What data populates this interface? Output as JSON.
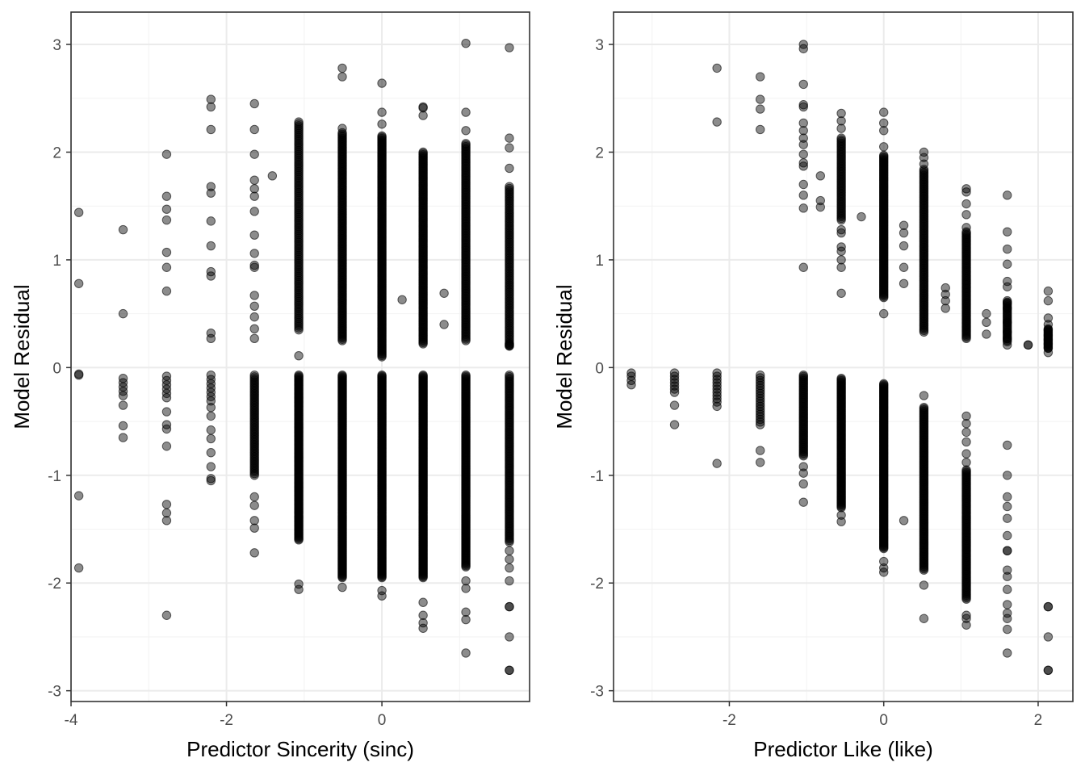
{
  "chart_data": [
    {
      "type": "scatter",
      "xlabel": "Predictor Sincerity (sinc)",
      "ylabel": "Model Residual",
      "xlim": [
        -4.0,
        1.9
      ],
      "ylim": [
        -3.1,
        3.3
      ],
      "x_ticks": [
        -4,
        -2,
        0
      ],
      "y_ticks": [
        -3,
        -2,
        -1,
        0,
        1,
        2,
        3
      ],
      "grid": true,
      "point_color": "#000000",
      "point_opacity": 0.45,
      "columns": [
        {
          "x": -3.9,
          "y": [
            1.44,
            0.78,
            -0.06,
            -0.07,
            -1.19,
            -1.86
          ]
        },
        {
          "x": -3.33,
          "y": [
            1.28,
            0.5,
            -0.1,
            -0.14,
            -0.18,
            -0.22,
            -0.26,
            -0.35,
            -0.54,
            -0.65
          ]
        },
        {
          "x": -2.77,
          "y": [
            1.98,
            1.59,
            1.47,
            1.37,
            1.07,
            0.93,
            0.71,
            -0.08,
            -0.12,
            -0.16,
            -0.2,
            -0.24,
            -0.28,
            -0.41,
            -0.53,
            -0.57,
            -0.73,
            -1.27,
            -1.35,
            -1.42,
            -2.3
          ]
        },
        {
          "x": -2.2,
          "y": [
            2.49,
            2.42,
            2.21,
            1.68,
            1.62,
            1.36,
            1.13,
            0.89,
            0.85,
            0.32,
            0.27,
            -0.07,
            -0.11,
            -0.15,
            -0.19,
            -0.23,
            -0.27,
            -0.31,
            -0.37,
            -0.45,
            -0.58,
            -0.66,
            -0.79,
            -0.92,
            -1.03,
            -1.05
          ]
        },
        {
          "x": -1.64,
          "y": [
            2.45,
            2.21,
            1.98,
            1.74,
            1.66,
            1.59,
            1.45,
            1.23,
            1.06,
            0.95,
            0.93,
            0.67,
            0.57,
            0.47,
            0.36,
            0.27
          ]
        },
        {
          "x": -1.64,
          "range": [
            -1.0,
            -0.07
          ],
          "n": 60
        },
        {
          "x": -1.64,
          "y": [
            -1.2,
            -1.28,
            -1.42,
            -1.49,
            -1.72
          ]
        },
        {
          "x": -1.41,
          "y": [
            1.78
          ]
        },
        {
          "x": -1.07,
          "range": [
            0.35,
            2.28
          ],
          "n": 110
        },
        {
          "x": -1.07,
          "y": [
            0.11
          ]
        },
        {
          "x": -1.07,
          "range": [
            -1.6,
            -0.07
          ],
          "n": 150
        },
        {
          "x": -1.07,
          "y": [
            -2.01,
            -2.06
          ]
        },
        {
          "x": -0.51,
          "y": [
            2.78,
            2.7,
            2.22
          ]
        },
        {
          "x": -0.51,
          "range": [
            0.25,
            2.18
          ],
          "n": 150
        },
        {
          "x": -0.51,
          "range": [
            -1.95,
            -0.07
          ],
          "n": 200
        },
        {
          "x": -0.51,
          "y": [
            -2.04
          ]
        },
        {
          "x": 0.0,
          "y": [
            2.64,
            2.37,
            2.26
          ]
        },
        {
          "x": 0.0,
          "range": [
            0.1,
            2.15
          ],
          "n": 180
        },
        {
          "x": 0.0,
          "range": [
            -1.95,
            -0.07
          ],
          "n": 200
        },
        {
          "x": 0.0,
          "y": [
            -2.07,
            -2.12
          ]
        },
        {
          "x": 0.26,
          "y": [
            0.63
          ]
        },
        {
          "x": 0.53,
          "y": [
            2.42,
            2.41,
            2.34
          ]
        },
        {
          "x": 0.53,
          "range": [
            0.22,
            2.0
          ],
          "n": 150
        },
        {
          "x": 0.53,
          "range": [
            -1.95,
            -0.07
          ],
          "n": 200
        },
        {
          "x": 0.53,
          "y": [
            -2.18,
            -2.3,
            -2.37,
            -2.42
          ]
        },
        {
          "x": 0.8,
          "y": [
            0.69,
            0.4
          ]
        },
        {
          "x": 1.08,
          "y": [
            3.01,
            2.37,
            2.2
          ]
        },
        {
          "x": 1.08,
          "range": [
            0.25,
            2.08
          ],
          "n": 130
        },
        {
          "x": 1.08,
          "range": [
            -1.85,
            -0.07
          ],
          "n": 160
        },
        {
          "x": 1.08,
          "y": [
            -1.98,
            -2.05,
            -2.27,
            -2.34,
            -2.65
          ]
        },
        {
          "x": 1.64,
          "y": [
            2.97,
            2.13,
            2.04,
            1.85
          ]
        },
        {
          "x": 1.64,
          "range": [
            0.2,
            1.68
          ],
          "n": 90
        },
        {
          "x": 1.64,
          "y": [
            0.2,
            0.21,
            0.22
          ]
        },
        {
          "x": 1.64,
          "range": [
            -1.62,
            -0.07
          ],
          "n": 110
        },
        {
          "x": 1.64,
          "y": [
            -1.7,
            -1.78,
            -1.86,
            -1.98,
            -2.22,
            -2.22,
            -2.5,
            -2.81,
            -2.81
          ]
        }
      ]
    },
    {
      "type": "scatter",
      "xlabel": "Predictor Like (like)",
      "ylabel": "Model Residual",
      "xlim": [
        -3.5,
        2.45
      ],
      "ylim": [
        -3.1,
        3.3
      ],
      "x_ticks": [
        -2,
        0,
        2
      ],
      "y_ticks": [
        -3,
        -2,
        -1,
        0,
        1,
        2,
        3
      ],
      "grid": true,
      "point_color": "#000000",
      "point_opacity": 0.45,
      "columns": [
        {
          "x": -3.27,
          "y": [
            -0.05,
            -0.08,
            -0.12,
            -0.16
          ]
        },
        {
          "x": -2.71,
          "y": [
            -0.05,
            -0.08,
            -0.11,
            -0.14,
            -0.17,
            -0.2,
            -0.23,
            -0.35,
            -0.53
          ]
        },
        {
          "x": -2.16,
          "y": [
            2.78,
            2.28,
            -0.05,
            -0.08,
            -0.11,
            -0.14,
            -0.17,
            -0.2,
            -0.23,
            -0.26,
            -0.29,
            -0.32,
            -0.36,
            -0.89
          ]
        },
        {
          "x": -1.6,
          "y": [
            2.7,
            2.49,
            2.4,
            2.21
          ]
        },
        {
          "x": -1.6,
          "range": [
            -0.53,
            -0.07
          ],
          "n": 20
        },
        {
          "x": -1.6,
          "y": [
            -0.77,
            -0.88
          ]
        },
        {
          "x": -1.04,
          "y": [
            3.0,
            2.96,
            2.63,
            2.44,
            2.42,
            2.27,
            2.2,
            2.13,
            2.07,
            1.98,
            1.9,
            1.87,
            1.7,
            1.6,
            1.48,
            0.93
          ]
        },
        {
          "x": -1.04,
          "range": [
            -0.82,
            -0.07
          ],
          "n": 60
        },
        {
          "x": -1.04,
          "y": [
            -0.92,
            -0.98,
            -1.08,
            -1.25
          ]
        },
        {
          "x": -0.82,
          "y": [
            1.78,
            1.55,
            1.49
          ]
        },
        {
          "x": -0.29,
          "y": [
            1.4
          ]
        },
        {
          "x": -0.55,
          "y": [
            2.36,
            2.29,
            2.22
          ]
        },
        {
          "x": -0.55,
          "range": [
            1.37,
            2.13
          ],
          "n": 50
        },
        {
          "x": -0.55,
          "y": [
            1.28,
            1.25,
            1.12,
            1.08,
            1.0,
            0.93,
            0.69
          ]
        },
        {
          "x": -0.55,
          "range": [
            -1.3,
            -0.1
          ],
          "n": 110
        },
        {
          "x": -0.55,
          "y": [
            -1.37,
            -1.43
          ]
        },
        {
          "x": 0.0,
          "y": [
            2.37,
            2.27,
            2.2,
            2.05
          ]
        },
        {
          "x": 0.0,
          "range": [
            0.65,
            1.97
          ],
          "n": 120
        },
        {
          "x": 0.0,
          "y": [
            0.5
          ]
        },
        {
          "x": 0.0,
          "range": [
            -1.68,
            -0.15
          ],
          "n": 160
        },
        {
          "x": 0.0,
          "y": [
            -1.8,
            -1.86,
            -1.9
          ]
        },
        {
          "x": 0.26,
          "y": [
            1.32,
            1.25,
            1.13,
            0.93,
            0.78,
            -1.42
          ]
        },
        {
          "x": 0.52,
          "y": [
            2.0,
            1.95,
            1.89,
            -0.26,
            -2.33
          ]
        },
        {
          "x": 0.52,
          "range": [
            0.33,
            1.84
          ],
          "n": 110
        },
        {
          "x": 0.52,
          "range": [
            -1.88,
            -0.37
          ],
          "n": 130
        },
        {
          "x": 0.52,
          "y": [
            -2.02
          ]
        },
        {
          "x": 0.8,
          "y": [
            0.74,
            0.68,
            0.62,
            0.55
          ]
        },
        {
          "x": 1.07,
          "y": [
            1.66,
            1.63,
            1.52,
            1.42,
            1.3
          ]
        },
        {
          "x": 1.07,
          "range": [
            0.27,
            1.26
          ],
          "n": 80
        },
        {
          "x": 1.07,
          "y": [
            -0.45,
            -0.52,
            -0.6,
            -0.69,
            -0.8,
            -0.88
          ]
        },
        {
          "x": 1.07,
          "range": [
            -2.15,
            -0.95
          ],
          "n": 100
        },
        {
          "x": 1.07,
          "y": [
            -2.3,
            -2.33,
            -2.39
          ]
        },
        {
          "x": 1.33,
          "y": [
            0.5,
            0.42,
            0.31
          ]
        },
        {
          "x": 1.6,
          "y": [
            1.6,
            1.26,
            1.1,
            0.96,
            0.8,
            0.75,
            0.6,
            0.55,
            0.42,
            0.33,
            0.27,
            0.21,
            -0.72,
            -1.0,
            -1.2,
            -1.29,
            -1.4,
            -1.56,
            -1.7,
            -1.7,
            -1.88,
            -1.94,
            -2.06,
            -2.2,
            -2.28,
            -2.33,
            -2.43,
            -2.65
          ]
        },
        {
          "x": 1.6,
          "range": [
            0.24,
            0.62
          ],
          "n": 30
        },
        {
          "x": 1.87,
          "y": [
            0.21,
            0.21
          ]
        },
        {
          "x": 2.13,
          "y": [
            0.71,
            0.62,
            0.46,
            0.4,
            0.35,
            0.3,
            0.26,
            0.22,
            0.18,
            0.14,
            -2.22,
            -2.22,
            -2.5,
            -2.81,
            -2.81
          ]
        },
        {
          "x": 2.13,
          "range": [
            0.18,
            0.36
          ],
          "n": 20
        }
      ]
    }
  ]
}
